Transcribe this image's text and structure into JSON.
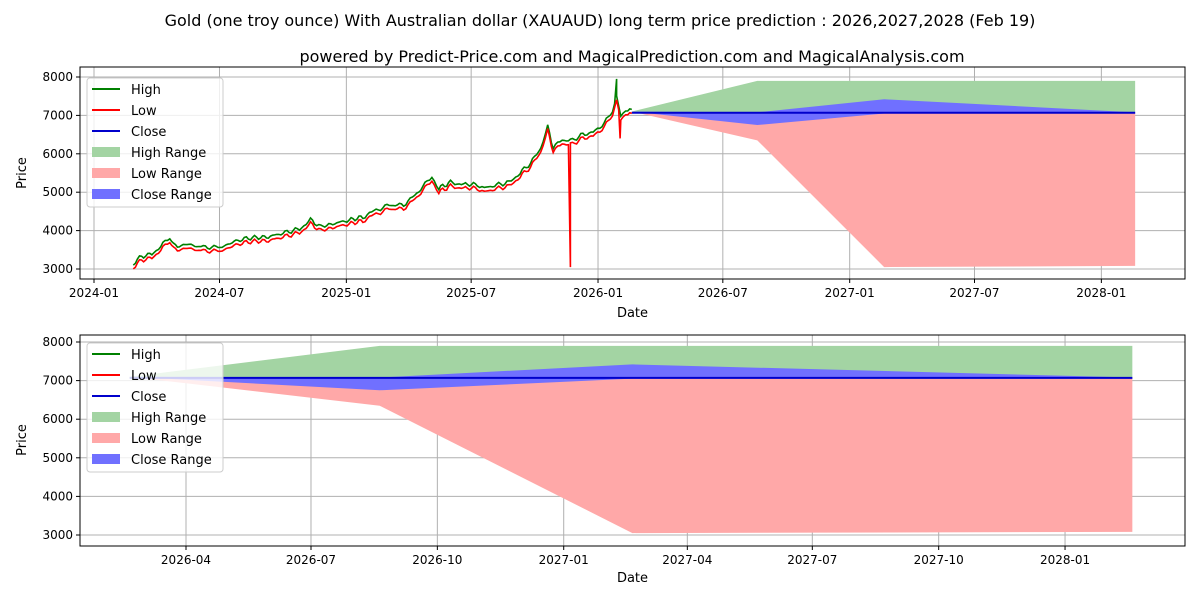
{
  "title": "Gold (one troy ounce) With Australian dollar (XAUAUD) long term price prediction : 2026,2027,2028 (Feb 19)",
  "subtitle": "powered by Predict-Price.com and MagicalPrediction.com and MagicalAnalysis.com",
  "watermark": "Predict-Price.com",
  "colors": {
    "high": "#008000",
    "low": "#ff0000",
    "close": "#0000cc",
    "high_range": "#a3d4a3",
    "low_range": "#ffa8a8",
    "close_range": "#7070ff"
  },
  "chart_data": [
    {
      "type": "line",
      "panel": "top",
      "xlabel": "Date",
      "ylabel": "Price",
      "ylim": [
        2800,
        8100
      ],
      "xlim": [
        "2023-12-12",
        "2028-05-03"
      ],
      "yticks": [
        "3000",
        "4000",
        "5000",
        "6000",
        "7000",
        "8000"
      ],
      "xticks": [
        "2024-01",
        "2024-07",
        "2025-01",
        "2025-07",
        "2026-01",
        "2026-07",
        "2027-01",
        "2027-07",
        "2028-01"
      ],
      "grid": true,
      "legend": {
        "placement": "top-left",
        "entries": [
          "High",
          "Low",
          "Close",
          "High Range",
          "Low Range",
          "Close Range"
        ]
      }
    },
    {
      "type": "line",
      "panel": "bottom",
      "xlabel": "Date",
      "ylabel": "Price",
      "ylim": [
        2800,
        8100
      ],
      "xlim": [
        "2026-01-14",
        "2028-04-18"
      ],
      "yticks": [
        "3000",
        "4000",
        "5000",
        "6000",
        "7000",
        "8000"
      ],
      "xticks": [
        "2026-04",
        "2026-07",
        "2026-10",
        "2027-01",
        "2027-04",
        "2027-07",
        "2027-10",
        "2028-01"
      ],
      "grid": true,
      "legend": {
        "placement": "top-left",
        "entries": [
          "High",
          "Low",
          "Close",
          "High Range",
          "Low Range",
          "Close Range"
        ]
      }
    }
  ],
  "history": [
    [
      "2024-02-27",
      3080
    ],
    [
      "2024-03-10",
      3280
    ],
    [
      "2024-03-25",
      3330
    ],
    [
      "2024-04-10",
      3600
    ],
    [
      "2024-04-20",
      3720
    ],
    [
      "2024-05-01",
      3520
    ],
    [
      "2024-05-15",
      3600
    ],
    [
      "2024-06-01",
      3520
    ],
    [
      "2024-06-20",
      3520
    ],
    [
      "2024-07-05",
      3520
    ],
    [
      "2024-07-25",
      3680
    ],
    [
      "2024-08-15",
      3760
    ],
    [
      "2024-09-10",
      3780
    ],
    [
      "2024-10-01",
      3880
    ],
    [
      "2024-10-25",
      3990
    ],
    [
      "2024-11-10",
      4220
    ],
    [
      "2024-11-25",
      4050
    ],
    [
      "2024-12-15",
      4130
    ],
    [
      "2025-01-05",
      4220
    ],
    [
      "2025-01-25",
      4300
    ],
    [
      "2025-02-10",
      4450
    ],
    [
      "2025-03-01",
      4600
    ],
    [
      "2025-03-25",
      4620
    ],
    [
      "2025-04-10",
      4850
    ],
    [
      "2025-04-25",
      5150
    ],
    [
      "2025-05-05",
      5350
    ],
    [
      "2025-05-15",
      5050
    ],
    [
      "2025-06-01",
      5200
    ],
    [
      "2025-06-20",
      5150
    ],
    [
      "2025-07-10",
      5150
    ],
    [
      "2025-07-20",
      5050
    ],
    [
      "2025-08-10",
      5150
    ],
    [
      "2025-08-25",
      5200
    ],
    [
      "2025-09-10",
      5450
    ],
    [
      "2025-09-25",
      5700
    ],
    [
      "2025-10-10",
      6100
    ],
    [
      "2025-10-20",
      6650
    ],
    [
      "2025-10-28",
      6100
    ],
    [
      "2025-11-10",
      6300
    ],
    [
      "2025-11-25",
      6300
    ],
    [
      "2025-12-10",
      6450
    ],
    [
      "2025-12-25",
      6500
    ],
    [
      "2026-01-10",
      6750
    ],
    [
      "2026-01-22",
      7050
    ],
    [
      "2026-01-28",
      7450
    ],
    [
      "2026-02-03",
      6900
    ],
    [
      "2026-02-10",
      7100
    ],
    [
      "2026-02-19",
      7100
    ]
  ],
  "spikes": {
    "high": [
      [
        "2026-01-28",
        7950
      ]
    ],
    "low": [
      [
        "2025-11-22",
        3050
      ],
      [
        "2026-02-02",
        6400
      ]
    ]
  },
  "forecast": {
    "dates": [
      "2026-02-19",
      "2026-08-20",
      "2027-02-20",
      "2028-02-19"
    ],
    "high_range_top": [
      7100,
      7900,
      7900,
      7900
    ],
    "low_range_bottom": [
      7100,
      6350,
      3050,
      3080
    ],
    "close_range_low": [
      7100,
      6750,
      7050,
      7050
    ],
    "close_range_high": [
      7100,
      7080,
      7420,
      7080
    ],
    "close": [
      7070,
      7070,
      7070,
      7070
    ]
  }
}
